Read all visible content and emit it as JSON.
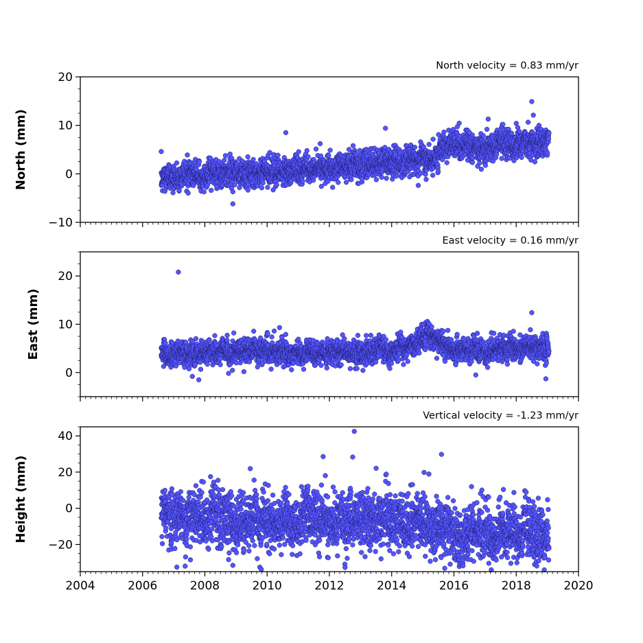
{
  "chart_data": [
    {
      "type": "scatter",
      "annotation": "North velocity = 0.83 mm/yr",
      "ylabel": "North (mm)",
      "xlim": [
        2004,
        2020
      ],
      "ylim": [
        -10,
        20
      ],
      "yticks": [
        -10,
        0,
        10,
        20
      ],
      "ytick_labels": [
        "−10",
        "0",
        "10",
        "20"
      ],
      "x_range": [
        2006.6,
        2019.05
      ],
      "trend": [
        [
          2006.6,
          -0.8
        ],
        [
          2010.0,
          0.3
        ],
        [
          2012.0,
          1.5
        ],
        [
          2014.0,
          2.3
        ],
        [
          2015.5,
          3.5
        ],
        [
          2015.55,
          5.5
        ],
        [
          2017.0,
          5.5
        ],
        [
          2019.05,
          7.0
        ]
      ],
      "scatter_sd": 1.4,
      "outliers": [
        [
          2006.6,
          4.6
        ],
        [
          2008.9,
          -6.2
        ],
        [
          2010.6,
          8.5
        ],
        [
          2013.8,
          9.4
        ],
        [
          2016.5,
          8.5
        ],
        [
          2017.1,
          11.3
        ],
        [
          2018.0,
          10.4
        ],
        [
          2018.5,
          14.9
        ],
        [
          2018.55,
          12.1
        ]
      ],
      "x": [],
      "y": []
    },
    {
      "type": "scatter",
      "annotation": "East velocity = 0.16 mm/yr",
      "ylabel": "East (mm)",
      "xlim": [
        2004,
        2020
      ],
      "ylim": [
        -5,
        25
      ],
      "yticks": [
        0,
        10,
        20
      ],
      "ytick_labels": [
        "0",
        "10",
        "20"
      ],
      "x_range": [
        2006.6,
        2019.05
      ],
      "trend": [
        [
          2006.6,
          3.8
        ],
        [
          2010.0,
          4.2
        ],
        [
          2013.0,
          4.0
        ],
        [
          2014.5,
          5.0
        ],
        [
          2015.1,
          7.8
        ],
        [
          2016.0,
          4.6
        ],
        [
          2019.05,
          5.2
        ]
      ],
      "scatter_sd": 1.2,
      "outliers": [
        [
          2007.15,
          20.8
        ],
        [
          2007.6,
          -0.8
        ],
        [
          2010.4,
          9.3
        ],
        [
          2015.2,
          10.1
        ],
        [
          2016.7,
          -0.5
        ],
        [
          2018.5,
          12.4
        ],
        [
          2018.95,
          -1.3
        ]
      ],
      "x": [],
      "y": []
    },
    {
      "type": "scatter",
      "annotation": "Vertical velocity = -1.23 mm/yr",
      "ylabel": "Height (mm)",
      "xlim": [
        2004,
        2020
      ],
      "ylim": [
        -35,
        45
      ],
      "yticks": [
        -20,
        0,
        20,
        40
      ],
      "ytick_labels": [
        "−20",
        "0",
        "20",
        "40"
      ],
      "x_range": [
        2006.6,
        2019.05
      ],
      "trend": [
        [
          2006.6,
          -4.0
        ],
        [
          2010.0,
          -8.0
        ],
        [
          2013.0,
          -7.0
        ],
        [
          2015.5,
          -10.0
        ],
        [
          2016.0,
          -13.0
        ],
        [
          2019.05,
          -15.0
        ]
      ],
      "scatter_sd": 7.5,
      "outliers": [
        [
          2007.1,
          -32.5
        ],
        [
          2008.9,
          -31.5
        ],
        [
          2011.8,
          28.6
        ],
        [
          2012.8,
          42.5
        ],
        [
          2012.75,
          28.3
        ],
        [
          2013.5,
          22.1
        ],
        [
          2015.6,
          29.8
        ],
        [
          2018.9,
          -34.0
        ]
      ],
      "x": [],
      "y": []
    }
  ],
  "xticks": [
    2004,
    2006,
    2008,
    2010,
    2012,
    2014,
    2016,
    2018,
    2020
  ],
  "xtick_labels": [
    "2004",
    "2006",
    "2008",
    "2010",
    "2012",
    "2014",
    "2016",
    "2018",
    "2020"
  ],
  "marker_color": "#5555ff",
  "marker_edge_color": "#1a1a66"
}
